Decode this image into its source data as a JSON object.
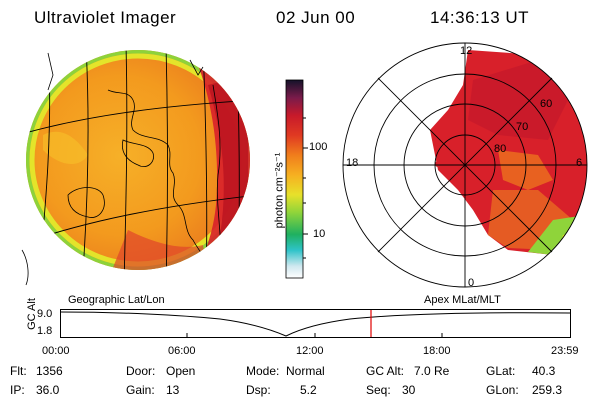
{
  "header": {
    "instrument": "Ultraviolet Imager",
    "date": "02 Jun 00",
    "time": "14:36:13 UT"
  },
  "colorbar": {
    "unit_label": "photon cm⁻²s⁻¹",
    "ticks": [
      "100",
      "10"
    ]
  },
  "polar_plot": {
    "mlt_labels": [
      "12",
      "18",
      "6",
      "0"
    ],
    "lat_labels": [
      "60",
      "70",
      "80"
    ]
  },
  "panel_labels": {
    "left": "Geographic Lat/Lon",
    "right": "Apex MLat/MLT"
  },
  "altitude_strip": {
    "ylabel": "GC Alt",
    "y_ticks": [
      "9.0",
      "1.8"
    ],
    "x_ticks": [
      "00:00",
      "06:00",
      "12:00",
      "18:00",
      "23:59"
    ]
  },
  "info": {
    "row1": [
      {
        "key": "Flt:",
        "value": "1356"
      },
      {
        "key": "Door:",
        "value": "Open"
      },
      {
        "key": "Mode:",
        "value": "Normal"
      },
      {
        "key": "GC Alt:",
        "value": "7.0 Re"
      },
      {
        "key": "GLat:",
        "value": "40.3"
      }
    ],
    "row2": [
      {
        "key": "IP:",
        "value": "36.0"
      },
      {
        "key": "Gain:",
        "value": "13"
      },
      {
        "key": "Dsp:",
        "value": "5.2"
      },
      {
        "key": "Seq:",
        "value": "30"
      },
      {
        "key": "GLon:",
        "value": "259.3"
      }
    ]
  },
  "colors": {
    "disk_base": "#f39a1e",
    "bright_red": "#d8202a",
    "marker": "#e00000"
  }
}
